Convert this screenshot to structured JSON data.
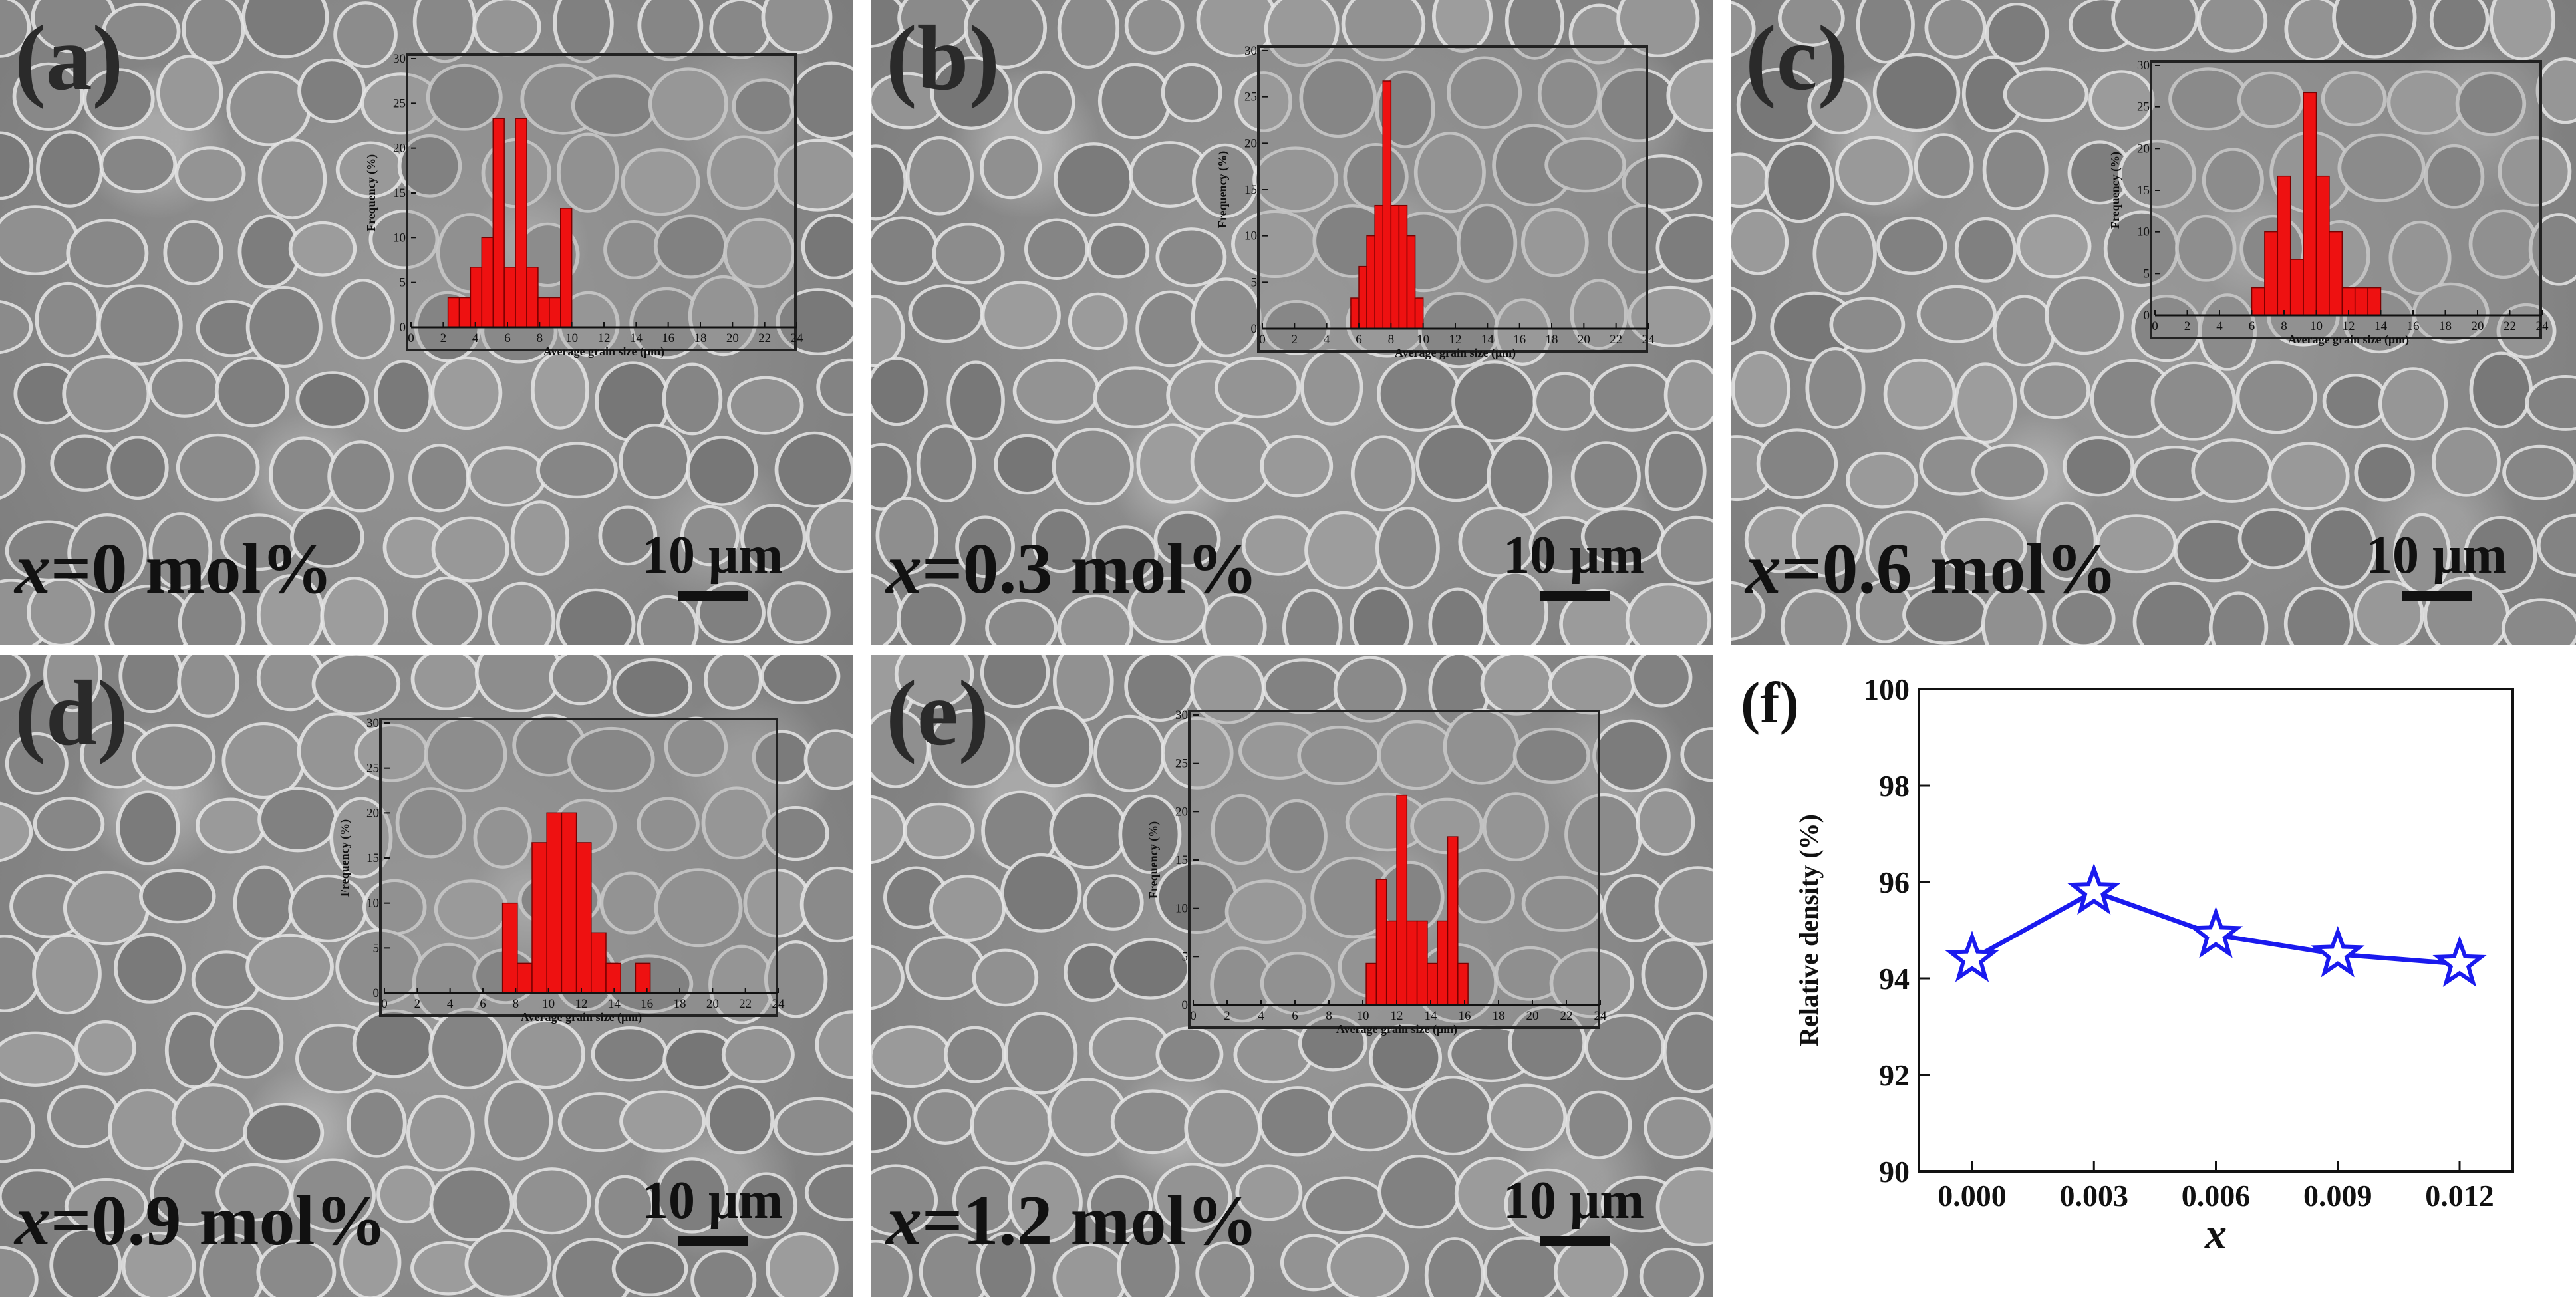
{
  "panels": [
    {
      "id": "a",
      "letter": "(a)",
      "x_label": "x",
      "composition": "=0 mol%",
      "scale_label": "10 μm"
    },
    {
      "id": "b",
      "letter": "(b)",
      "x_label": "x",
      "composition": "=0.3 mol%",
      "scale_label": "10 μm"
    },
    {
      "id": "c",
      "letter": "(c)",
      "x_label": "x",
      "composition": "=0.6 mol%",
      "scale_label": "10 μm"
    },
    {
      "id": "d",
      "letter": "(d)",
      "x_label": "x",
      "composition": "=0.9 mol%",
      "scale_label": "10 μm"
    },
    {
      "id": "e",
      "letter": "(e)",
      "x_label": "x",
      "composition": "=1.2 mol%",
      "scale_label": "10 μm"
    }
  ],
  "panel_f": {
    "letter": "(f)"
  },
  "colors": {
    "bar": "#ee1111",
    "bar_edge": "#7a0000",
    "line": "#1a1aee",
    "axis": "#111111"
  },
  "chart_data": [
    {
      "panel": "a",
      "type": "bar",
      "xlabel": "Average grain size (μm)",
      "ylabel": "Frequency (%)",
      "xlim": [
        0,
        24
      ],
      "ylim": [
        0,
        30
      ],
      "xticks": [
        0,
        2,
        4,
        6,
        8,
        10,
        12,
        14,
        16,
        18,
        20,
        22,
        24
      ],
      "yticks": [
        0,
        5,
        10,
        15,
        20,
        25,
        30
      ],
      "bin_width": 0.7,
      "bins": [
        2.3,
        3.0,
        3.7,
        4.4,
        5.1,
        5.8,
        6.5,
        7.2,
        7.9,
        8.6,
        9.3,
        10.0
      ],
      "values": [
        3.3,
        3.3,
        6.7,
        10,
        23.3,
        6.7,
        23.3,
        6.7,
        3.3,
        3.3,
        13.3,
        0
      ]
    },
    {
      "panel": "b",
      "type": "bar",
      "xlabel": "Average grain size (μm)",
      "ylabel": "Frequency (%)",
      "xlim": [
        0,
        24
      ],
      "ylim": [
        0,
        30
      ],
      "xticks": [
        0,
        2,
        4,
        6,
        8,
        10,
        12,
        14,
        16,
        18,
        20,
        22,
        24
      ],
      "yticks": [
        0,
        5,
        10,
        15,
        20,
        25,
        30
      ],
      "bin_width": 0.5,
      "bins": [
        5.5,
        6.0,
        6.5,
        7.0,
        7.5,
        8.0,
        8.5,
        9.0,
        9.5,
        10.0,
        10.5
      ],
      "values": [
        3.3,
        6.7,
        10,
        13.3,
        26.7,
        13.3,
        13.3,
        10,
        3.3,
        0,
        0
      ]
    },
    {
      "panel": "c",
      "type": "bar",
      "xlabel": "Average grain size (μm)",
      "ylabel": "Frequency (%)",
      "xlim": [
        0,
        24
      ],
      "ylim": [
        0,
        30
      ],
      "xticks": [
        0,
        2,
        4,
        6,
        8,
        10,
        12,
        14,
        16,
        18,
        20,
        22,
        24
      ],
      "yticks": [
        0,
        5,
        10,
        15,
        20,
        25,
        30
      ],
      "bin_width": 0.8,
      "bins": [
        6.0,
        6.8,
        7.6,
        8.4,
        9.2,
        10.0,
        10.8,
        11.6,
        12.4,
        13.2,
        14.0,
        14.8
      ],
      "values": [
        3.3,
        10,
        16.7,
        6.7,
        26.7,
        16.7,
        10,
        3.3,
        3.3,
        3.3,
        0,
        0
      ]
    },
    {
      "panel": "d",
      "type": "bar",
      "xlabel": "Average grain size (μm)",
      "ylabel": "Frequency (%)",
      "xlim": [
        0,
        24
      ],
      "ylim": [
        0,
        30
      ],
      "xticks": [
        0,
        2,
        4,
        6,
        8,
        10,
        12,
        14,
        16,
        18,
        20,
        22,
        24
      ],
      "yticks": [
        0,
        5,
        10,
        15,
        20,
        25,
        30
      ],
      "bin_width": 0.9,
      "bins": [
        7.2,
        8.1,
        9.0,
        9.9,
        10.8,
        11.7,
        12.6,
        13.5,
        14.4,
        15.3,
        16.2
      ],
      "values": [
        10,
        3.3,
        16.7,
        20,
        20,
        16.7,
        6.7,
        3.3,
        0,
        3.3,
        0
      ]
    },
    {
      "panel": "e",
      "type": "bar",
      "xlabel": "Average grain size (μm)",
      "ylabel": "Frequency (%)",
      "xlim": [
        0,
        24
      ],
      "ylim": [
        0,
        30
      ],
      "xticks": [
        0,
        2,
        4,
        6,
        8,
        10,
        12,
        14,
        16,
        18,
        20,
        22,
        24
      ],
      "yticks": [
        0,
        5,
        10,
        15,
        20,
        25,
        30
      ],
      "bin_width": 0.6,
      "bins": [
        10.2,
        10.8,
        11.4,
        12.0,
        12.6,
        13.2,
        13.8,
        14.4,
        15.0,
        15.6,
        16.2
      ],
      "values": [
        4.3,
        13,
        8.7,
        21.7,
        8.7,
        8.7,
        4.3,
        8.7,
        17.4,
        4.3,
        0
      ]
    },
    {
      "panel": "f",
      "type": "line",
      "xlabel": "x",
      "ylabel": "Relative density (%)",
      "categories": [
        "0.000",
        "0.003",
        "0.006",
        "0.009",
        "0.012"
      ],
      "values": [
        94.4,
        95.8,
        94.9,
        94.5,
        94.3
      ],
      "ylim": [
        90,
        100
      ],
      "yticks": [
        90,
        92,
        94,
        96,
        98,
        100
      ],
      "marker": "star"
    }
  ]
}
